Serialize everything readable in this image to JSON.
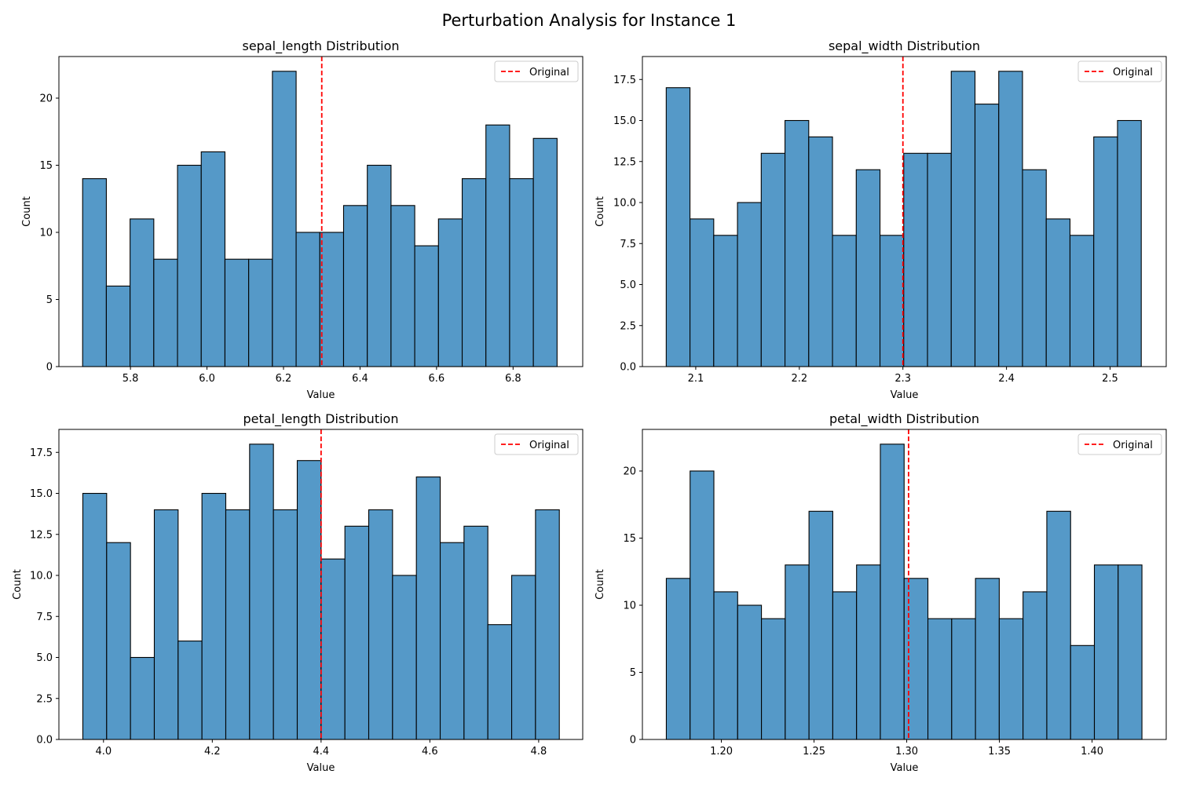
{
  "figure": {
    "title": "Perturbation Analysis for Instance 1"
  },
  "colors": {
    "bar_fill": "#5599c8",
    "bar_edge": "#000000",
    "reference_line": "#ff0000"
  },
  "chart_data": [
    {
      "type": "bar",
      "title": "sepal_length Distribution",
      "xlabel": "Value",
      "ylabel": "Count",
      "bin_start": 5.675,
      "bin_width": 0.062,
      "values": [
        14,
        6,
        11,
        8,
        15,
        16,
        8,
        8,
        22,
        10,
        10,
        12,
        15,
        12,
        9,
        11,
        14,
        18,
        14,
        17
      ],
      "xlim": [
        5.613,
        6.982
      ],
      "ylim": [
        0,
        23.1
      ],
      "xticks": [
        5.8,
        6.0,
        6.2,
        6.4,
        6.6,
        6.8
      ],
      "xtick_labels": [
        "5.8",
        "6.0",
        "6.2",
        "6.4",
        "6.6",
        "6.8"
      ],
      "yticks": [
        0,
        5,
        10,
        15,
        20
      ],
      "ytick_labels": [
        "0",
        "5",
        "10",
        "15",
        "20"
      ],
      "reference_x": 6.3,
      "legend": {
        "label": "Original",
        "position": "top-right"
      }
    },
    {
      "type": "bar",
      "title": "sepal_width Distribution",
      "xlabel": "Value",
      "ylabel": "Count",
      "bin_start": 2.0715,
      "bin_width": 0.02293,
      "values": [
        17,
        9,
        8,
        10,
        13,
        15,
        14,
        8,
        12,
        8,
        13,
        13,
        18,
        16,
        18,
        12,
        9,
        8,
        14,
        15
      ],
      "xlim": [
        2.0485,
        2.5542
      ],
      "ylim": [
        0,
        18.9
      ],
      "xticks": [
        2.1,
        2.2,
        2.3,
        2.4,
        2.5
      ],
      "xtick_labels": [
        "2.1",
        "2.2",
        "2.3",
        "2.4",
        "2.5"
      ],
      "yticks": [
        0,
        2.5,
        5,
        7.5,
        10,
        12.5,
        15,
        17.5
      ],
      "ytick_labels": [
        "0.0",
        "2.5",
        "5.0",
        "7.5",
        "10.0",
        "12.5",
        "15.0",
        "17.5"
      ],
      "reference_x": 2.3,
      "legend": {
        "label": "Original",
        "position": "top-right"
      }
    },
    {
      "type": "bar",
      "title": "petal_length Distribution",
      "xlabel": "Value",
      "ylabel": "Count",
      "bin_start": 3.962,
      "bin_width": 0.0438,
      "values": [
        15,
        12,
        5,
        14,
        6,
        15,
        14,
        18,
        14,
        17,
        11,
        13,
        14,
        10,
        16,
        12,
        13,
        7,
        10,
        14
      ],
      "xlim": [
        3.918,
        4.881
      ],
      "ylim": [
        0,
        18.9
      ],
      "xticks": [
        4.0,
        4.2,
        4.4,
        4.6,
        4.8
      ],
      "xtick_labels": [
        "4.0",
        "4.2",
        "4.4",
        "4.6",
        "4.8"
      ],
      "yticks": [
        0,
        2.5,
        5,
        7.5,
        10,
        12.5,
        15,
        17.5
      ],
      "ytick_labels": [
        "0.0",
        "2.5",
        "5.0",
        "7.5",
        "10.0",
        "12.5",
        "15.0",
        "17.5"
      ],
      "reference_x": 4.4,
      "legend": {
        "label": "Original",
        "position": "top-right"
      }
    },
    {
      "type": "bar",
      "title": "petal_width Distribution",
      "xlabel": "Value",
      "ylabel": "Count",
      "bin_start": 1.1703,
      "bin_width": 0.01283,
      "values": [
        12,
        20,
        11,
        10,
        9,
        13,
        17,
        11,
        13,
        22,
        12,
        9,
        9,
        12,
        9,
        11,
        17,
        7,
        13,
        13
      ],
      "xlim": [
        1.1574,
        1.44
      ],
      "ylim": [
        0,
        23.1
      ],
      "xticks": [
        1.2,
        1.25,
        1.3,
        1.35,
        1.4
      ],
      "xtick_labels": [
        "1.20",
        "1.25",
        "1.30",
        "1.35",
        "1.40"
      ],
      "yticks": [
        0,
        5,
        10,
        15,
        20
      ],
      "ytick_labels": [
        "0",
        "5",
        "10",
        "15",
        "20"
      ],
      "reference_x": 1.301,
      "legend": {
        "label": "Original",
        "position": "top-right"
      }
    }
  ]
}
